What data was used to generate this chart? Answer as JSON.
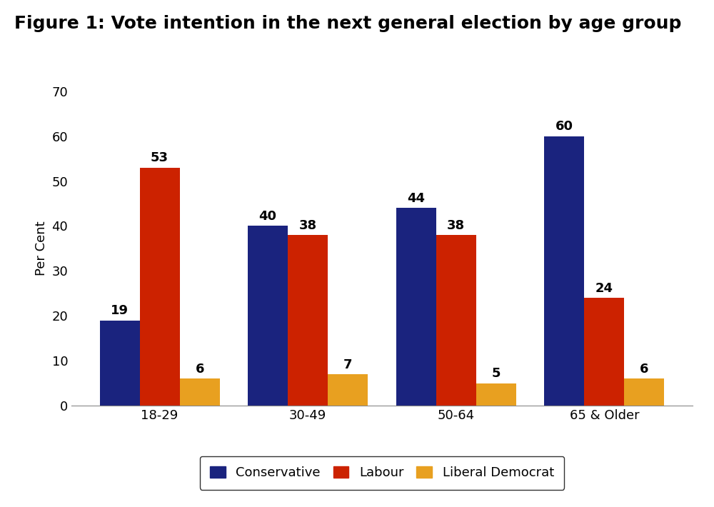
{
  "title": "Figure 1: Vote intention in the next general election by age group",
  "title_fontsize": 18,
  "title_fontweight": "bold",
  "ylabel": "Per Cent",
  "ylabel_fontsize": 13,
  "categories": [
    "18-29",
    "30-49",
    "50-64",
    "65 & Older"
  ],
  "series": {
    "Conservative": [
      19,
      40,
      44,
      60
    ],
    "Labour": [
      53,
      38,
      38,
      24
    ],
    "Liberal Democrat": [
      6,
      7,
      5,
      6
    ]
  },
  "colors": {
    "Conservative": "#1a237e",
    "Labour": "#cc2200",
    "Liberal Democrat": "#e8a020"
  },
  "ylim": [
    0,
    70
  ],
  "yticks": [
    0,
    10,
    20,
    30,
    40,
    50,
    60,
    70
  ],
  "bar_width": 0.27,
  "label_fontsize": 13,
  "legend_fontsize": 13,
  "tick_fontsize": 13,
  "background_color": "#ffffff"
}
